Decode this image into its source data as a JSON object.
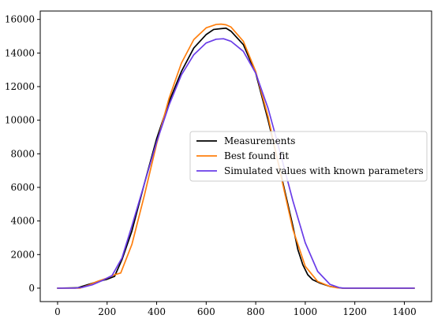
{
  "chart_data": {
    "type": "line",
    "title": "",
    "xlabel": "",
    "ylabel": "",
    "xlim": [
      -70,
      1510
    ],
    "ylim": [
      -800,
      16500
    ],
    "xticks": [
      0,
      200,
      400,
      600,
      800,
      1000,
      1200,
      1400
    ],
    "yticks": [
      0,
      2000,
      4000,
      6000,
      8000,
      10000,
      12000,
      14000,
      16000
    ],
    "grid": false,
    "legend_position": "center-right",
    "series": [
      {
        "name": "Measurements",
        "color": "#000000",
        "x": [
          0,
          80,
          120,
          160,
          200,
          230,
          260,
          300,
          350,
          400,
          450,
          500,
          550,
          600,
          630,
          660,
          680,
          700,
          750,
          800,
          850,
          900,
          950,
          970,
          990,
          1010,
          1030,
          1060,
          1100,
          1150,
          1200,
          1300,
          1400,
          1440
        ],
        "y": [
          0,
          20,
          200,
          380,
          530,
          700,
          1700,
          3400,
          6200,
          8900,
          11100,
          12900,
          14300,
          15100,
          15400,
          15450,
          15480,
          15300,
          14500,
          12800,
          10000,
          6900,
          3700,
          2300,
          1400,
          800,
          500,
          300,
          100,
          0,
          0,
          0,
          0,
          0
        ]
      },
      {
        "name": "Best found fit",
        "color": "#ff7f0e",
        "x": [
          0,
          90,
          120,
          160,
          200,
          230,
          255,
          300,
          350,
          400,
          450,
          500,
          550,
          600,
          640,
          660,
          680,
          700,
          750,
          800,
          850,
          900,
          950,
          1000,
          1050,
          1100,
          1130,
          1150,
          1200,
          1300,
          1400,
          1440
        ],
        "y": [
          0,
          0,
          150,
          400,
          600,
          800,
          900,
          2600,
          5500,
          8600,
          11300,
          13400,
          14800,
          15500,
          15700,
          15720,
          15680,
          15550,
          14700,
          12900,
          10200,
          6800,
          3500,
          1300,
          400,
          100,
          20,
          0,
          0,
          0,
          0,
          0
        ]
      },
      {
        "name": "Simulated values with known parameters",
        "color": "#6a3de8",
        "x": [
          0,
          70,
          100,
          140,
          180,
          220,
          260,
          300,
          350,
          400,
          450,
          500,
          550,
          600,
          640,
          670,
          700,
          750,
          800,
          850,
          900,
          950,
          1000,
          1050,
          1100,
          1140,
          1160,
          1200,
          1300,
          1400,
          1440
        ],
        "y": [
          0,
          0,
          50,
          200,
          450,
          750,
          1800,
          3700,
          6200,
          8700,
          10900,
          12700,
          13900,
          14600,
          14820,
          14850,
          14700,
          14100,
          12800,
          10700,
          8000,
          5200,
          2700,
          1000,
          220,
          20,
          0,
          0,
          0,
          0,
          0
        ]
      }
    ]
  }
}
